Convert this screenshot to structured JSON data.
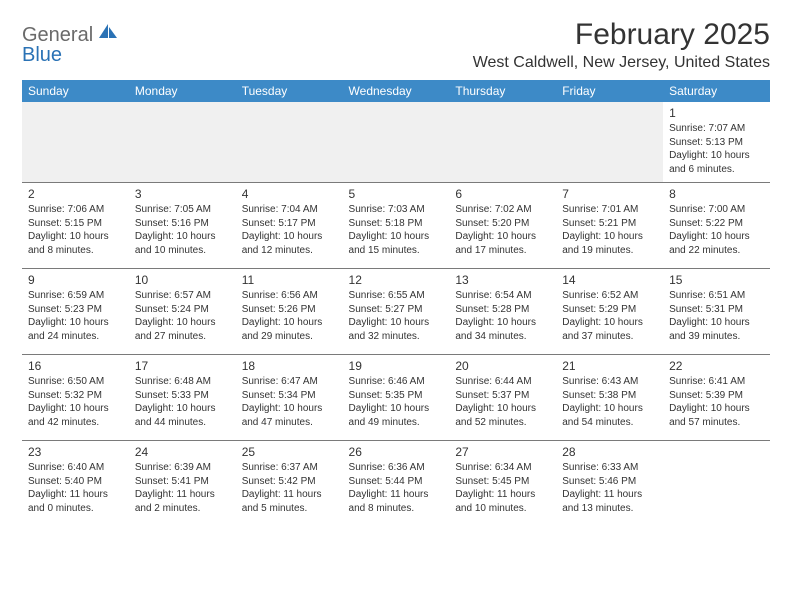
{
  "logo": {
    "text1": "General",
    "text2": "Blue"
  },
  "title": "February 2025",
  "location": "West Caldwell, New Jersey, United States",
  "colors": {
    "header_bg": "#3d8ac7",
    "header_text": "#ffffff",
    "rule": "#7a7a7a",
    "logo_gray": "#6a6a6a",
    "logo_blue": "#2a72b5",
    "blank_bg": "#efefef"
  },
  "day_headers": [
    "Sunday",
    "Monday",
    "Tuesday",
    "Wednesday",
    "Thursday",
    "Friday",
    "Saturday"
  ],
  "weeks": [
    [
      null,
      null,
      null,
      null,
      null,
      null,
      {
        "n": "1",
        "sr": "Sunrise: 7:07 AM",
        "ss": "Sunset: 5:13 PM",
        "dl": "Daylight: 10 hours and 6 minutes."
      }
    ],
    [
      {
        "n": "2",
        "sr": "Sunrise: 7:06 AM",
        "ss": "Sunset: 5:15 PM",
        "dl": "Daylight: 10 hours and 8 minutes."
      },
      {
        "n": "3",
        "sr": "Sunrise: 7:05 AM",
        "ss": "Sunset: 5:16 PM",
        "dl": "Daylight: 10 hours and 10 minutes."
      },
      {
        "n": "4",
        "sr": "Sunrise: 7:04 AM",
        "ss": "Sunset: 5:17 PM",
        "dl": "Daylight: 10 hours and 12 minutes."
      },
      {
        "n": "5",
        "sr": "Sunrise: 7:03 AM",
        "ss": "Sunset: 5:18 PM",
        "dl": "Daylight: 10 hours and 15 minutes."
      },
      {
        "n": "6",
        "sr": "Sunrise: 7:02 AM",
        "ss": "Sunset: 5:20 PM",
        "dl": "Daylight: 10 hours and 17 minutes."
      },
      {
        "n": "7",
        "sr": "Sunrise: 7:01 AM",
        "ss": "Sunset: 5:21 PM",
        "dl": "Daylight: 10 hours and 19 minutes."
      },
      {
        "n": "8",
        "sr": "Sunrise: 7:00 AM",
        "ss": "Sunset: 5:22 PM",
        "dl": "Daylight: 10 hours and 22 minutes."
      }
    ],
    [
      {
        "n": "9",
        "sr": "Sunrise: 6:59 AM",
        "ss": "Sunset: 5:23 PM",
        "dl": "Daylight: 10 hours and 24 minutes."
      },
      {
        "n": "10",
        "sr": "Sunrise: 6:57 AM",
        "ss": "Sunset: 5:24 PM",
        "dl": "Daylight: 10 hours and 27 minutes."
      },
      {
        "n": "11",
        "sr": "Sunrise: 6:56 AM",
        "ss": "Sunset: 5:26 PM",
        "dl": "Daylight: 10 hours and 29 minutes."
      },
      {
        "n": "12",
        "sr": "Sunrise: 6:55 AM",
        "ss": "Sunset: 5:27 PM",
        "dl": "Daylight: 10 hours and 32 minutes."
      },
      {
        "n": "13",
        "sr": "Sunrise: 6:54 AM",
        "ss": "Sunset: 5:28 PM",
        "dl": "Daylight: 10 hours and 34 minutes."
      },
      {
        "n": "14",
        "sr": "Sunrise: 6:52 AM",
        "ss": "Sunset: 5:29 PM",
        "dl": "Daylight: 10 hours and 37 minutes."
      },
      {
        "n": "15",
        "sr": "Sunrise: 6:51 AM",
        "ss": "Sunset: 5:31 PM",
        "dl": "Daylight: 10 hours and 39 minutes."
      }
    ],
    [
      {
        "n": "16",
        "sr": "Sunrise: 6:50 AM",
        "ss": "Sunset: 5:32 PM",
        "dl": "Daylight: 10 hours and 42 minutes."
      },
      {
        "n": "17",
        "sr": "Sunrise: 6:48 AM",
        "ss": "Sunset: 5:33 PM",
        "dl": "Daylight: 10 hours and 44 minutes."
      },
      {
        "n": "18",
        "sr": "Sunrise: 6:47 AM",
        "ss": "Sunset: 5:34 PM",
        "dl": "Daylight: 10 hours and 47 minutes."
      },
      {
        "n": "19",
        "sr": "Sunrise: 6:46 AM",
        "ss": "Sunset: 5:35 PM",
        "dl": "Daylight: 10 hours and 49 minutes."
      },
      {
        "n": "20",
        "sr": "Sunrise: 6:44 AM",
        "ss": "Sunset: 5:37 PM",
        "dl": "Daylight: 10 hours and 52 minutes."
      },
      {
        "n": "21",
        "sr": "Sunrise: 6:43 AM",
        "ss": "Sunset: 5:38 PM",
        "dl": "Daylight: 10 hours and 54 minutes."
      },
      {
        "n": "22",
        "sr": "Sunrise: 6:41 AM",
        "ss": "Sunset: 5:39 PM",
        "dl": "Daylight: 10 hours and 57 minutes."
      }
    ],
    [
      {
        "n": "23",
        "sr": "Sunrise: 6:40 AM",
        "ss": "Sunset: 5:40 PM",
        "dl": "Daylight: 11 hours and 0 minutes."
      },
      {
        "n": "24",
        "sr": "Sunrise: 6:39 AM",
        "ss": "Sunset: 5:41 PM",
        "dl": "Daylight: 11 hours and 2 minutes."
      },
      {
        "n": "25",
        "sr": "Sunrise: 6:37 AM",
        "ss": "Sunset: 5:42 PM",
        "dl": "Daylight: 11 hours and 5 minutes."
      },
      {
        "n": "26",
        "sr": "Sunrise: 6:36 AM",
        "ss": "Sunset: 5:44 PM",
        "dl": "Daylight: 11 hours and 8 minutes."
      },
      {
        "n": "27",
        "sr": "Sunrise: 6:34 AM",
        "ss": "Sunset: 5:45 PM",
        "dl": "Daylight: 11 hours and 10 minutes."
      },
      {
        "n": "28",
        "sr": "Sunrise: 6:33 AM",
        "ss": "Sunset: 5:46 PM",
        "dl": "Daylight: 11 hours and 13 minutes."
      },
      null
    ]
  ]
}
